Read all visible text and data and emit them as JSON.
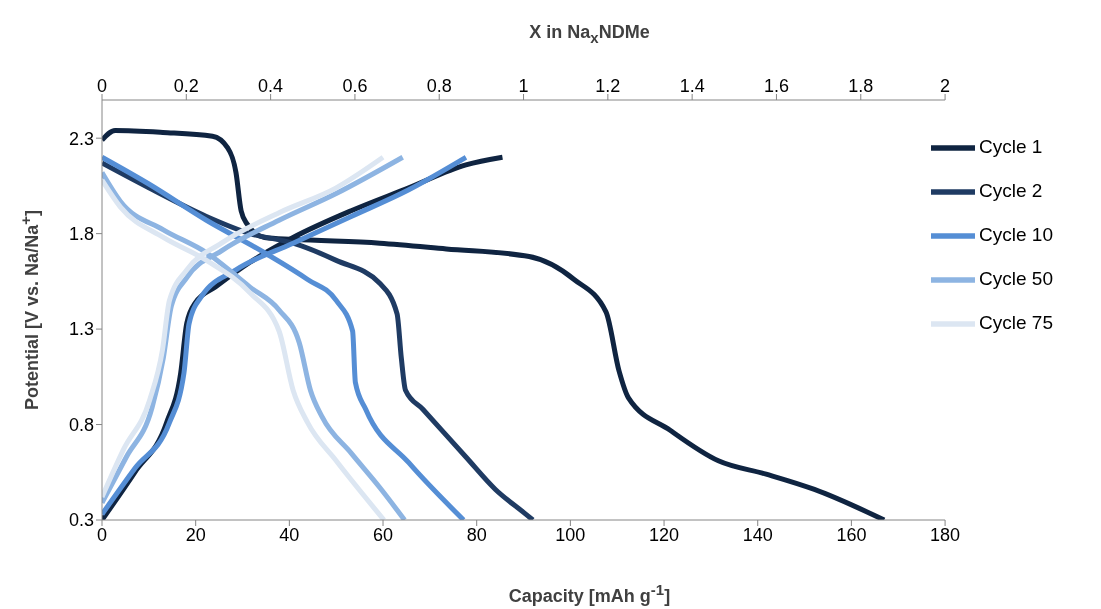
{
  "chart_data": {
    "type": "line",
    "xlabel": "Capacity [mAh g$^{-1}$]",
    "ylabel": "Potential [V vs. Na/Na$^{+}$]",
    "x2label": "X in Na$_{x}$NDMe",
    "xlim": [
      0,
      180
    ],
    "xticks": [
      0,
      20,
      40,
      60,
      80,
      100,
      120,
      140,
      160,
      180
    ],
    "x2lim": [
      0,
      2
    ],
    "x2ticks": [
      0,
      0.2,
      0.4,
      0.6,
      0.8,
      1,
      1.2,
      1.4,
      1.6,
      1.8,
      2
    ],
    "ylim": [
      0.3,
      2.5
    ],
    "yticks": [
      0.3,
      0.8,
      1.3,
      1.8,
      2.3
    ],
    "grid": false,
    "legend": "top right",
    "marker": "none",
    "line_style": "solid",
    "series": [
      {
        "name": "Cycle 1",
        "color": "#0f2441",
        "x": [
          0,
          2.8,
          13,
          23.6,
          26.8,
          28.6,
          29.7,
          31,
          34.7,
          40.8,
          59.3,
          73.5,
          91.2,
          100.8,
          107.6,
          110.4,
          112.4,
          121.3,
          131.6,
          141.8,
          152.1,
          167
        ],
        "values": [
          2.29,
          2.34,
          2.33,
          2.31,
          2.25,
          2.12,
          1.92,
          1.85,
          1.78,
          1.77,
          1.75,
          1.72,
          1.68,
          1.56,
          1.39,
          1.08,
          0.94,
          0.77,
          0.61,
          0.54,
          0.46,
          0.3
        ]
      },
      {
        "color": "#0f2441",
        "x": [
          0,
          7,
          13.8,
          16.8,
          18.1,
          20,
          24.2,
          31.6,
          40.8,
          53.2,
          65.5,
          77.7,
          85.5
        ],
        "values": [
          0.3,
          0.55,
          0.81,
          1.07,
          1.33,
          1.44,
          1.52,
          1.65,
          1.78,
          1.92,
          2.04,
          2.16,
          2.2
        ]
      },
      {
        "name": "Cycle 2",
        "color": "#1f3b63",
        "x": [
          0,
          10,
          22.3,
          31.6,
          40.8,
          50,
          59.3,
          63,
          63.9,
          64.8,
          68.5,
          77.7,
          84,
          90,
          92
        ],
        "values": [
          2.17,
          2.04,
          1.89,
          1.8,
          1.75,
          1.66,
          1.54,
          1.38,
          1.15,
          0.98,
          0.88,
          0.63,
          0.46,
          0.34,
          0.3
        ]
      },
      {
        "name": "Cycle 10",
        "color": "#558ed5",
        "x": [
          0,
          10,
          22.3,
          34.7,
          43.9,
          50,
          53.5,
          54.1,
          56.3,
          65.5,
          77.2
        ],
        "values": [
          2.2,
          2.06,
          1.87,
          1.7,
          1.56,
          1.45,
          1.29,
          1.02,
          0.88,
          0.6,
          0.3
        ]
      },
      {
        "color": "#558ed5",
        "x": [
          0,
          7,
          14.4,
          17.5,
          18.6,
          21.2,
          28.6,
          40.8,
          53.2,
          65.5,
          77.7
        ],
        "values": [
          0.33,
          0.57,
          0.81,
          1.07,
          1.33,
          1.47,
          1.61,
          1.75,
          1.89,
          2.03,
          2.2
        ]
      },
      {
        "name": "Cycle 50",
        "color": "#8db4e2",
        "x": [
          0,
          3.9,
          13.1,
          22.3,
          31.6,
          37.8,
          42.1,
          44.5,
          47,
          53.2,
          59.3,
          64.6
        ],
        "values": [
          2.12,
          1.97,
          1.82,
          1.7,
          1.52,
          1.4,
          1.23,
          0.98,
          0.84,
          0.65,
          0.47,
          0.3
        ]
      },
      {
        "color": "#8db4e2",
        "x": [
          0,
          5.2,
          10.7,
          13.1,
          14.8,
          18.1,
          25.5,
          37.8,
          50,
          64.2
        ],
        "values": [
          0.39,
          0.63,
          0.89,
          1.15,
          1.42,
          1.57,
          1.71,
          1.87,
          2.01,
          2.2
        ]
      },
      {
        "name": "Cycle 75",
        "color": "#dce6f2",
        "x": [
          0,
          3.9,
          13.1,
          22.3,
          31.6,
          37.8,
          40.8,
          43.9,
          50,
          60.2
        ],
        "values": [
          2.08,
          1.94,
          1.78,
          1.66,
          1.49,
          1.29,
          0.98,
          0.81,
          0.61,
          0.3
        ]
      },
      {
        "color": "#dce6f2",
        "x": [
          0,
          4.6,
          10.2,
          12.9,
          14.4,
          18.1,
          25.5,
          37.8,
          50,
          60
        ],
        "values": [
          0.42,
          0.67,
          0.93,
          1.19,
          1.45,
          1.61,
          1.75,
          1.91,
          2.04,
          2.2
        ]
      }
    ]
  }
}
